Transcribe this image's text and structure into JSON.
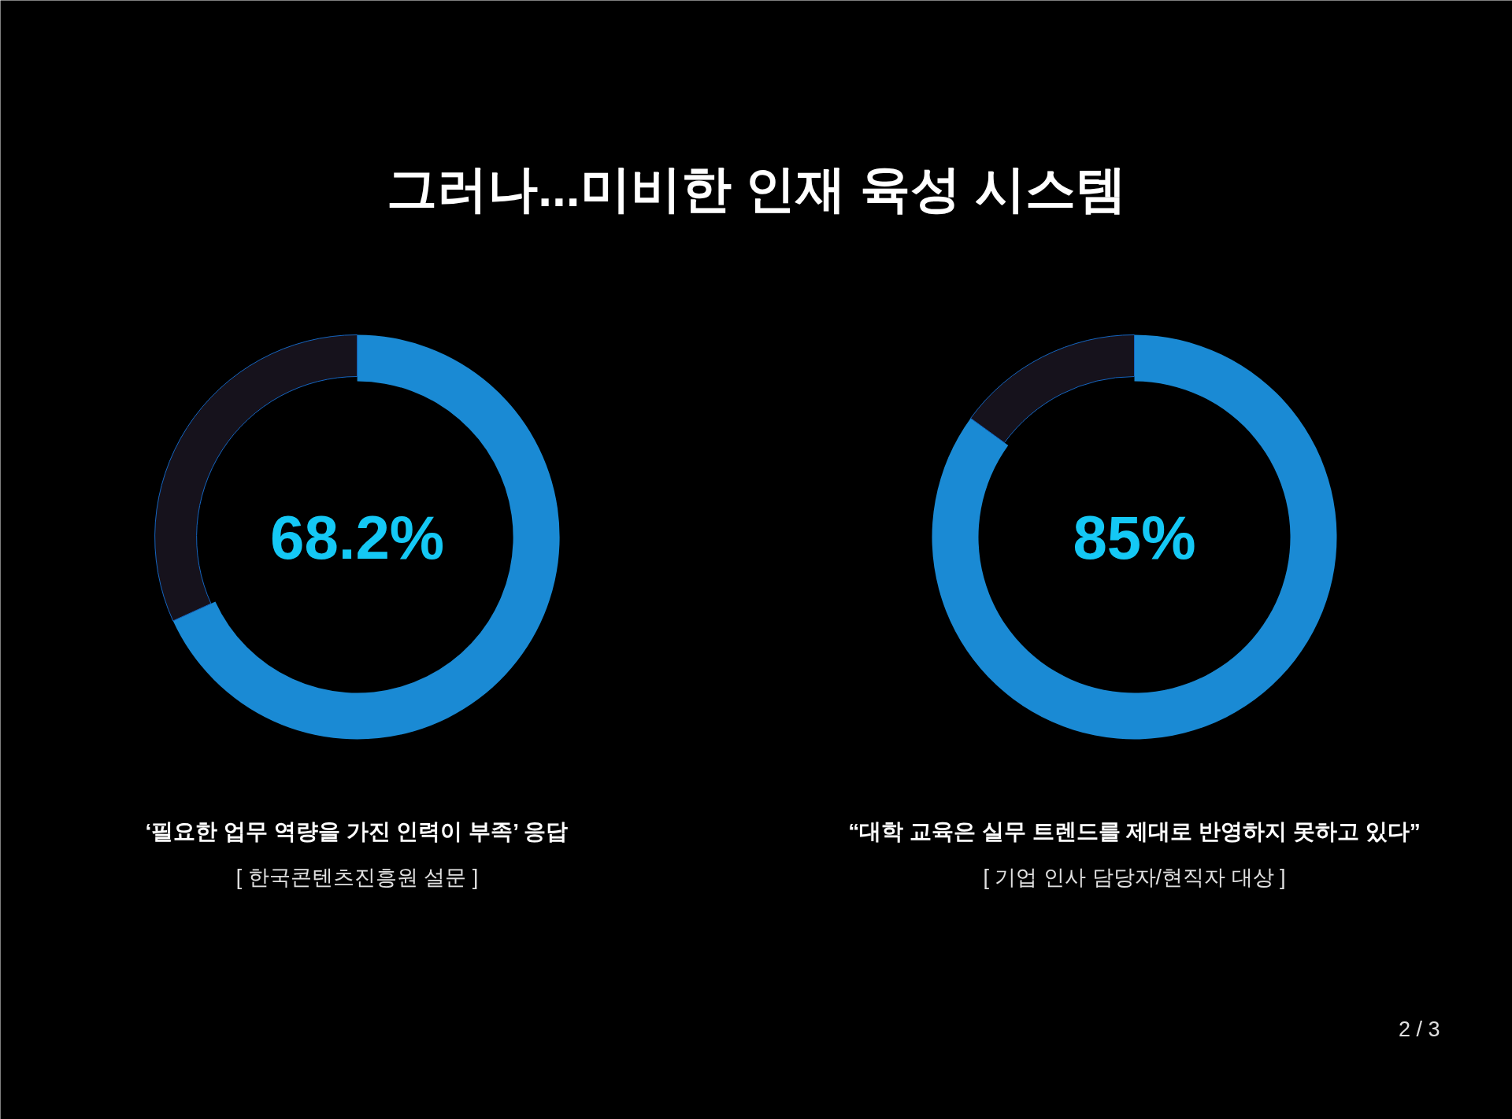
{
  "chart_data": [
    {
      "type": "donut",
      "title": "그러나...미비한 인재 육성 시스템",
      "subtitle": "‘필요한 업무 역량을 가진 인력이 부족’ 응답",
      "categories": [
        null,
        null
      ],
      "values": [
        68.2,
        31.8
      ],
      "colors": [
        "#1a8ad4",
        "#16121c"
      ],
      "annotations": [
        "68.2%",
        "[ 한국콘텐츠진흥원 설문 ]"
      ]
    },
    {
      "type": "donut",
      "subtitle": "“대학 교육은 실무 트렌드를 제대로 반영하지 못하고 있다”",
      "categories": [
        null,
        null
      ],
      "values": [
        85,
        15
      ],
      "colors": [
        "#1a8ad4",
        "#16121c"
      ],
      "annotations": [
        "85%",
        "[ 기업 인사 담당자/현직자 대상 ]",
        "2 / 3"
      ]
    }
  ]
}
